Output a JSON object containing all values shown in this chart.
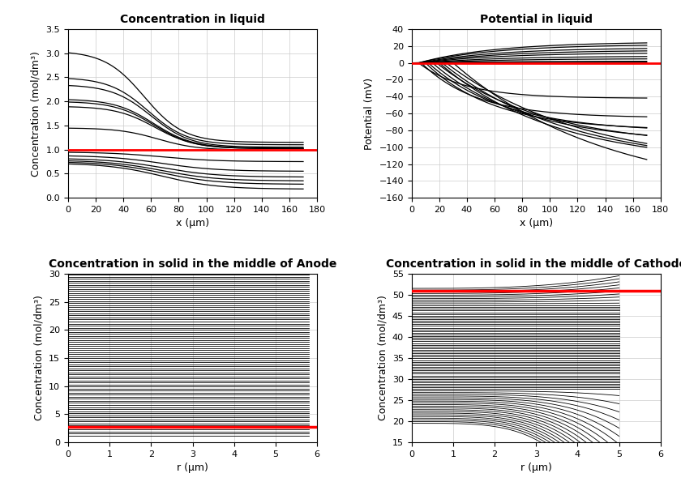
{
  "title_top_left": "Concentration in liquid",
  "title_top_right": "Potential in liquid",
  "title_bot_left": "Concentration in solid in the middle of Anode",
  "title_bot_right": "Concentration in solid in the middle of Cathode",
  "xlabel_top": "x (μm)",
  "xlabel_bot": "r (μm)",
  "ylabel_conc": "Concentration (mol/dm³)",
  "ylabel_pot": "Potential (mV)",
  "x_max_liquid": 170,
  "x_max_solid_anode": 5.8,
  "x_max_solid_cathode": 5.0,
  "conc_ylim": [
    0,
    3.5
  ],
  "pot_ylim": [
    -160,
    40
  ],
  "anode_ylim": [
    0,
    30
  ],
  "cathode_ylim": [
    15,
    55
  ],
  "red_conc": 1.0,
  "red_pot": 0.0,
  "red_anode": 2.8,
  "red_cathode": 51.0,
  "background": "#ffffff",
  "line_color": "#000000",
  "red_color": "#ff0000",
  "grid_color": "#cccccc"
}
